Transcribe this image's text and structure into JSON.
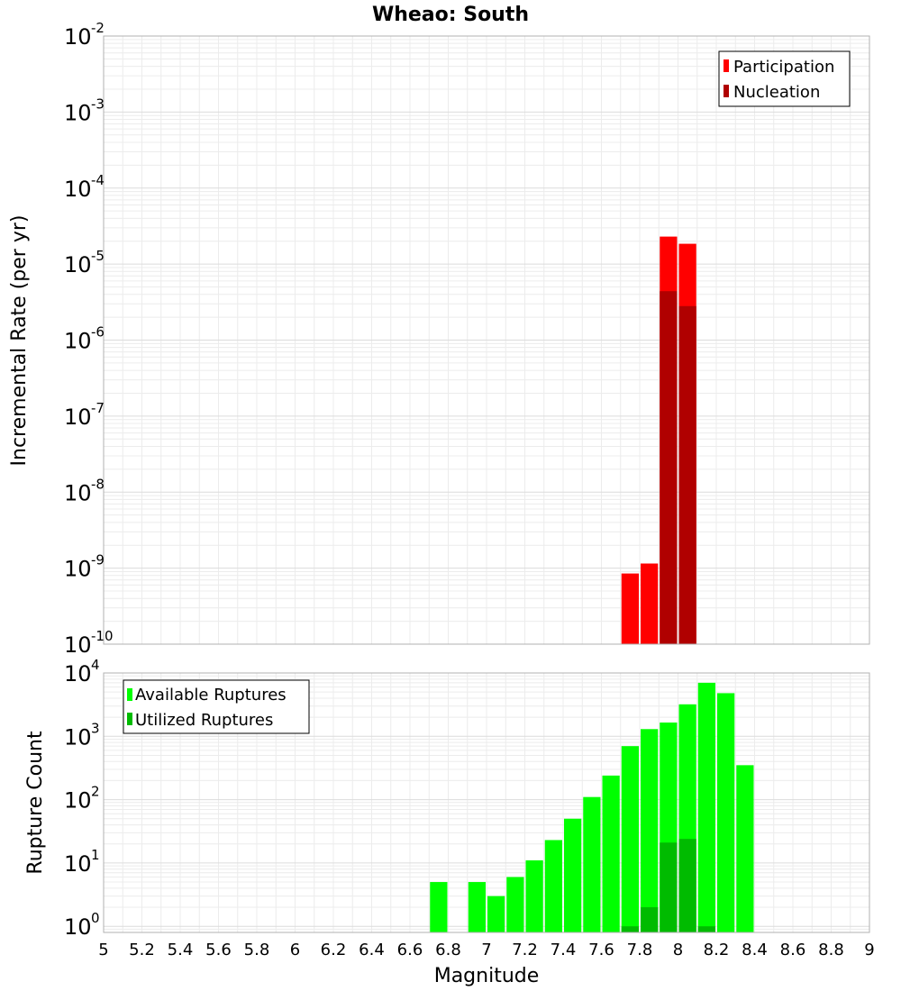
{
  "chart_data": [
    {
      "type": "bar",
      "title": "Wheao: South",
      "ylabel": "Incremental Rate (per yr)",
      "xlabel": "",
      "yscale": "log",
      "ylim": [
        1e-10,
        0.01
      ],
      "xlim": [
        5,
        9
      ],
      "grid": true,
      "legend_position": "top-right",
      "y_ticks": [
        {
          "base": "10",
          "exp": "-2"
        },
        {
          "base": "10",
          "exp": "-3"
        },
        {
          "base": "10",
          "exp": "-4"
        },
        {
          "base": "10",
          "exp": "-5"
        },
        {
          "base": "10",
          "exp": "-6"
        },
        {
          "base": "10",
          "exp": "-7"
        },
        {
          "base": "10",
          "exp": "-8"
        },
        {
          "base": "10",
          "exp": "-9"
        },
        {
          "base": "10",
          "exp": "-10"
        }
      ],
      "series": [
        {
          "name": "Participation",
          "color": "#ff0000",
          "x": [
            7.75,
            7.85,
            7.95,
            8.05
          ],
          "values": [
            8.5e-10,
            1.15e-09,
            2.3e-05,
            1.85e-05
          ]
        },
        {
          "name": "Nucleation",
          "color": "#b00000",
          "x": [
            7.95,
            8.05
          ],
          "values": [
            4.4e-06,
            2.8e-06
          ]
        }
      ]
    },
    {
      "type": "bar",
      "title": "",
      "ylabel": "Rupture Count",
      "xlabel": "Magnitude",
      "yscale": "log",
      "ylim": [
        0.8,
        10000
      ],
      "xlim": [
        5,
        9
      ],
      "grid": true,
      "legend_position": "top-left",
      "x_ticks": [
        "5",
        "5.2",
        "5.4",
        "5.6",
        "5.8",
        "6",
        "6.2",
        "6.4",
        "6.6",
        "6.8",
        "7",
        "7.2",
        "7.4",
        "7.6",
        "7.8",
        "8",
        "8.2",
        "8.4",
        "8.6",
        "8.8",
        "9"
      ],
      "y_ticks": [
        {
          "base": "10",
          "exp": "4"
        },
        {
          "base": "10",
          "exp": "3"
        },
        {
          "base": "10",
          "exp": "2"
        },
        {
          "base": "10",
          "exp": "1"
        },
        {
          "base": "10",
          "exp": "0"
        }
      ],
      "series": [
        {
          "name": "Available Ruptures",
          "color": "#00ff00",
          "x": [
            6.75,
            6.95,
            7.05,
            7.15,
            7.25,
            7.35,
            7.45,
            7.55,
            7.65,
            7.75,
            7.85,
            7.95,
            8.05,
            8.15,
            8.25,
            8.35
          ],
          "values": [
            5,
            5,
            3,
            6,
            11,
            23,
            50,
            110,
            240,
            700,
            1300,
            1650,
            3200,
            7000,
            4800,
            350
          ]
        },
        {
          "name": "Utilized Ruptures",
          "color": "#00bb00",
          "x": [
            7.75,
            7.85,
            7.95,
            8.05,
            8.15
          ],
          "values": [
            1,
            2,
            21,
            24,
            1
          ]
        }
      ]
    }
  ]
}
